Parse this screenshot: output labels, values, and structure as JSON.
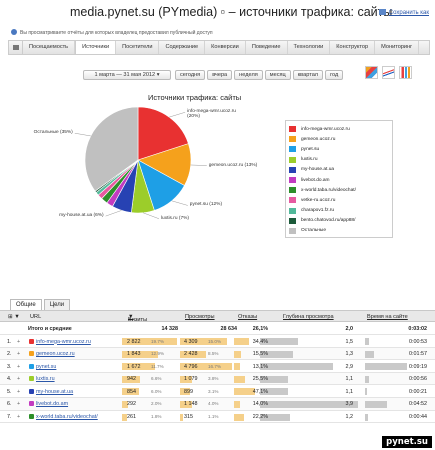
{
  "header": {
    "title": "media.pynet.su (PYmedia) ▫ – источники трафика: сайты",
    "save_report": "Сохранить как",
    "info": "Вы просматриваете отчёты для которых владелец предоставил публичный доступ"
  },
  "nav": {
    "tabs": [
      "Посещаемость",
      "Источники",
      "Посетители",
      "Содержание",
      "Конверсии",
      "Поведение",
      "Технологии",
      "Конструктор",
      "Мониторинг"
    ],
    "active": "Источники"
  },
  "period": {
    "range": "1 марта — 31 мая 2012",
    "buttons": [
      "сегодня",
      "вчера",
      "неделя",
      "месяц",
      "квартал",
      "год"
    ]
  },
  "chart_data": {
    "type": "pie",
    "title": "Источники трафика: сайты",
    "slices": [
      {
        "name": "info-mega-wmr.ucoz.ru",
        "percent": 20,
        "color": "#e83131"
      },
      {
        "name": "gemeon.ucoz.ru",
        "percent": 13,
        "color": "#f5a11c"
      },
      {
        "name": "pynet.su",
        "percent": 12,
        "color": "#1e9fe6"
      },
      {
        "name": "luxtis.ru",
        "percent": 7,
        "color": "#9ccd2a"
      },
      {
        "name": "my-house.at.ua",
        "percent": 6,
        "color": "#2742b3"
      },
      {
        "name": "livebot.do.am",
        "percent": 2,
        "color": "#c23bc0"
      },
      {
        "name": "x-world.taba.ru/videochat/",
        "percent": 2,
        "color": "#2c8f2a"
      },
      {
        "name": "vetke-ru.ucoz.ru",
        "percent": 1.5,
        "color": "#e65aa0"
      },
      {
        "name": "charapov1.fz.ru",
        "percent": 1,
        "color": "#52b99a"
      },
      {
        "name": "bento.chatovod.ru/app88/",
        "percent": 0.5,
        "color": "#1c5a3a"
      },
      {
        "name": "Остальные",
        "percent": 35,
        "color": "#c0c0c0"
      }
    ],
    "labels": {
      "info-mega-wmr.ucoz.ru": "info-mega-wmr.ucoz.ru\n(20%)",
      "gemeon.ucoz.ru": "gemeon.ucoz.ru (13%)",
      "pynet.su": "pynet.su (12%)",
      "luxtis.ru": "luxtis.ru (7%)",
      "my-house.at.ua": "my-house.at.ua (6%)",
      "Остальные": "Остальные (35%)"
    }
  },
  "table": {
    "tabs": [
      "Общие",
      "Цели"
    ],
    "active_tab": "Общие",
    "headers": {
      "url": "URL",
      "visits": "Визиты",
      "views": "Просмотры",
      "bounce": "Отказы",
      "depth": "Глубина просмотра",
      "time": "Время на сайте"
    },
    "total": {
      "label": "Итого и средние",
      "visits": "14 328",
      "views": "28 634",
      "bounce": "26,1%",
      "depth": "2,0",
      "time": "0:03:02"
    },
    "rows": [
      {
        "n": "1.",
        "url": "info-mega-wmr.ucoz.ru",
        "visits": "2 822",
        "visits_pct": "19.7%",
        "views": "4 309",
        "views_pct": "15.0%",
        "bounce": "34,4%",
        "depth": "1,5",
        "time": "0:00:53",
        "icon": "#e83131"
      },
      {
        "n": "2.",
        "url": "gemeon.ucoz.ru",
        "visits": "1 843",
        "visits_pct": "12.9%",
        "views": "2 428",
        "views_pct": "8.5%",
        "bounce": "15,5%",
        "depth": "1,3",
        "time": "0:01:57",
        "icon": "#f5a11c"
      },
      {
        "n": "3.",
        "url": "pynet.su",
        "visits": "1 672",
        "visits_pct": "11.7%",
        "views": "4 796",
        "views_pct": "16.7%",
        "bounce": "13,1%",
        "depth": "2,9",
        "time": "0:09:19",
        "icon": "#1e9fe6"
      },
      {
        "n": "4.",
        "url": "luxtis.ru",
        "visits": "942",
        "visits_pct": "6.6%",
        "views": "1 079",
        "views_pct": "3.8%",
        "bounce": "25,5%",
        "depth": "1,1",
        "time": "0:00:56",
        "icon": "#9ccd2a"
      },
      {
        "n": "5.",
        "url": "my-house.at.ua",
        "visits": "854",
        "visits_pct": "6.0%",
        "views": "899",
        "views_pct": "3.1%",
        "bounce": "47,1%",
        "depth": "1,1",
        "time": "0:00:21",
        "icon": "#2742b3"
      },
      {
        "n": "6.",
        "url": "livebot.do.am",
        "visits": "292",
        "visits_pct": "2.0%",
        "views": "1 148",
        "views_pct": "4.0%",
        "bounce": "14,0%",
        "depth": "3,9",
        "time": "0:04:52",
        "icon": "#c23bc0"
      },
      {
        "n": "7.",
        "url": "x-world.taba.ru/videochat/",
        "visits": "261",
        "visits_pct": "1.8%",
        "views": "315",
        "views_pct": "1.1%",
        "bounce": "22,2%",
        "depth": "1,2",
        "time": "0:00:44",
        "icon": "#2c8f2a"
      }
    ],
    "bounce_values": [
      34.4,
      15.5,
      13.1,
      25.5,
      47.1,
      14.0,
      22.2
    ],
    "depth_values": [
      1.5,
      1.3,
      2.9,
      1.1,
      1.1,
      3.9,
      1.2
    ],
    "time_seconds": [
      53,
      117,
      559,
      56,
      21,
      292,
      44
    ]
  },
  "watermark": "pynet.su"
}
